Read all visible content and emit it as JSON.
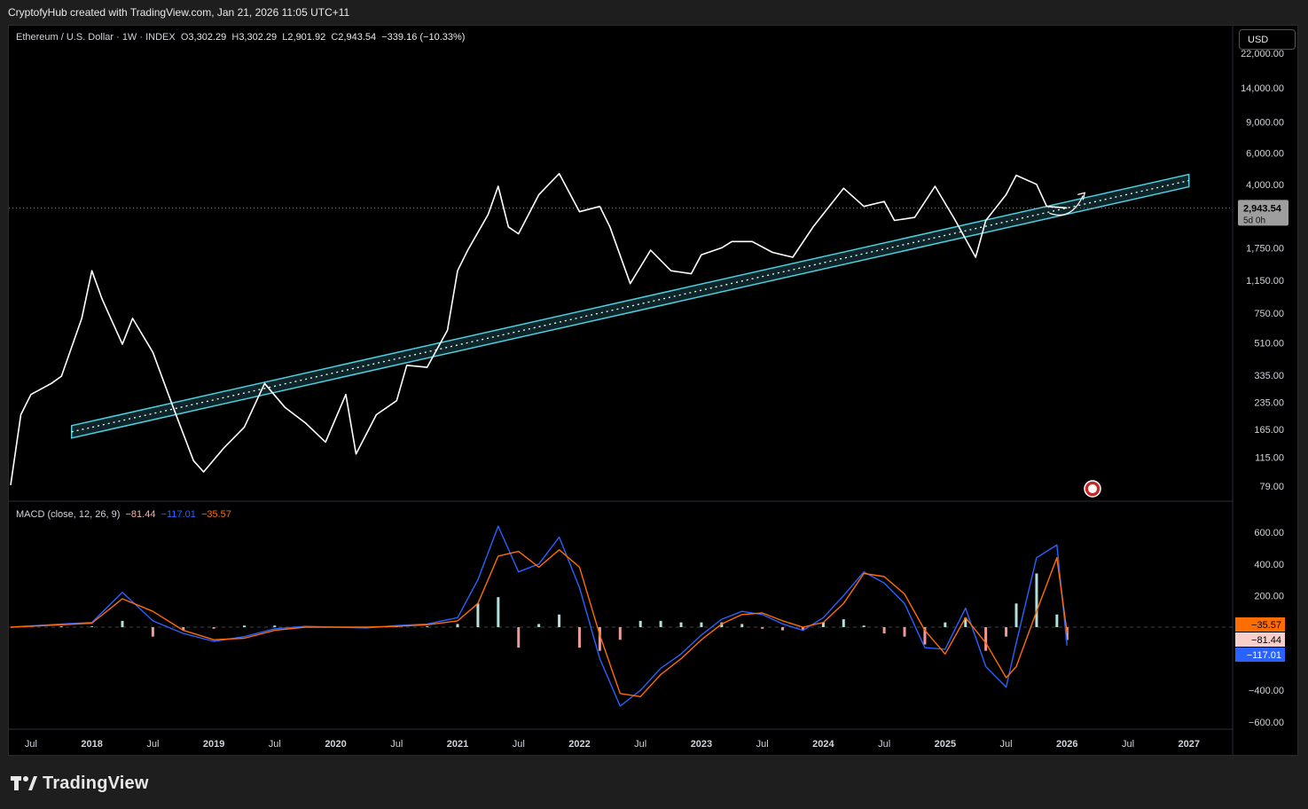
{
  "header": {
    "text": "CryptofyHub created with TradingView.com, Jan 21, 2026 11:05 UTC+11"
  },
  "footer": {
    "brand": "TradingView"
  },
  "currency_button": "USD",
  "legend": {
    "symbol": "Ethereum / U.S. Dollar · 1W · INDEX",
    "o_label": "O",
    "o_value": "3,302.29",
    "h_label": "H",
    "h_value": "3,302.29",
    "l_label": "L",
    "l_value": "2,901.92",
    "c_label": "C",
    "c_value": "2,943.54",
    "change": "−339.16 (−10.33%)"
  },
  "macd_legend": {
    "name": "MACD (close, 12, 26, 9)",
    "hist": "−81.44",
    "macd": "−117.01",
    "signal": "−35.57"
  },
  "colors": {
    "background": "#000000",
    "candle_up": "#ffffff",
    "candle_down": "#ffffff",
    "channel": "#4dd0e1",
    "macd_line": "#2962ff",
    "signal_line": "#ff6d00",
    "hist_pos": "#b2dfdb",
    "hist_neg": "#ef9a9a"
  },
  "chart_data": [
    {
      "type": "line",
      "title": "Ethereum / U.S. Dollar · 1W · INDEX",
      "scale": "log",
      "price_axis_ticks": [
        "22,000.00",
        "14,000.00",
        "9,000.00",
        "6,000.00",
        "4,000.00",
        "2,943.54",
        "1,750.00",
        "1,150.00",
        "750.00",
        "510.00",
        "335.00",
        "235.00",
        "165.00",
        "115.00",
        "79.00"
      ],
      "time_axis_ticks": [
        "Jul",
        "2018",
        "Jul",
        "2019",
        "Jul",
        "2020",
        "Jul",
        "2021",
        "Jul",
        "2022",
        "Jul",
        "2023",
        "Jul",
        "2024",
        "Jul",
        "2025",
        "Jul",
        "2026",
        "Jul",
        "2027"
      ],
      "last_price_label": "2,943.54",
      "countdown_label": "5d 0h",
      "ylim": [
        79,
        22000
      ],
      "x": [
        "2017-05",
        "2017-06",
        "2017-07",
        "2017-09",
        "2017-10",
        "2017-12",
        "2018-01",
        "2018-02",
        "2018-04",
        "2018-05",
        "2018-07",
        "2018-09",
        "2018-11",
        "2018-12",
        "2019-02",
        "2019-04",
        "2019-06",
        "2019-08",
        "2019-10",
        "2019-12",
        "2020-02",
        "2020-03",
        "2020-05",
        "2020-07",
        "2020-08",
        "2020-10",
        "2020-12",
        "2021-01",
        "2021-02",
        "2021-04",
        "2021-05",
        "2021-06",
        "2021-07",
        "2021-09",
        "2021-11",
        "2022-01",
        "2022-03",
        "2022-04",
        "2022-06",
        "2022-08",
        "2022-10",
        "2022-12",
        "2023-01",
        "2023-03",
        "2023-04",
        "2023-06",
        "2023-08",
        "2023-10",
        "2023-12",
        "2024-03",
        "2024-05",
        "2024-07",
        "2024-08",
        "2024-10",
        "2024-12",
        "2025-02",
        "2025-04",
        "2025-05",
        "2025-07",
        "2025-08",
        "2025-10",
        "2025-11",
        "2026-01"
      ],
      "values": [
        80,
        200,
        260,
        300,
        330,
        700,
        1300,
        900,
        500,
        700,
        450,
        220,
        110,
        95,
        130,
        170,
        300,
        220,
        180,
        140,
        260,
        120,
        200,
        240,
        380,
        370,
        600,
        1300,
        1700,
        2700,
        3900,
        2300,
        2100,
        3500,
        4600,
        2800,
        3000,
        2300,
        1100,
        1700,
        1300,
        1250,
        1600,
        1750,
        1900,
        1900,
        1650,
        1550,
        2300,
        3800,
        3000,
        3200,
        2500,
        2600,
        3900,
        2500,
        1550,
        2500,
        3500,
        4500,
        4000,
        3000,
        2943.54
      ],
      "channel": {
        "label": "",
        "start": [
          "2017-11",
          160
        ],
        "end": [
          "2027-01",
          4200
        ]
      }
    },
    {
      "type": "line",
      "title": "MACD (close, 12, 26, 9)",
      "ylim": [
        -600,
        600
      ],
      "axis_ticks": [
        "600.00",
        "400.00",
        "200.00",
        "−400.00",
        "−600.00"
      ],
      "value_labels": {
        "signal": "−35.57",
        "hist": "−81.44",
        "macd": "−117.01"
      },
      "x": [
        "2017-05",
        "2017-10",
        "2018-01",
        "2018-04",
        "2018-07",
        "2018-10",
        "2019-01",
        "2019-04",
        "2019-07",
        "2019-10",
        "2020-01",
        "2020-04",
        "2020-07",
        "2020-10",
        "2021-01",
        "2021-03",
        "2021-05",
        "2021-07",
        "2021-09",
        "2021-11",
        "2022-01",
        "2022-03",
        "2022-05",
        "2022-07",
        "2022-09",
        "2022-11",
        "2023-01",
        "2023-03",
        "2023-05",
        "2023-07",
        "2023-09",
        "2023-11",
        "2024-01",
        "2024-03",
        "2024-05",
        "2024-07",
        "2024-09",
        "2024-11",
        "2025-01",
        "2025-03",
        "2025-05",
        "2025-07",
        "2025-08",
        "2025-10",
        "2025-12",
        "2026-01"
      ],
      "series": [
        {
          "name": "MACD",
          "values": [
            0,
            20,
            30,
            220,
            40,
            -40,
            -90,
            -60,
            -10,
            5,
            0,
            -5,
            10,
            20,
            60,
            300,
            640,
            350,
            400,
            570,
            250,
            -200,
            -500,
            -400,
            -260,
            -170,
            -50,
            50,
            100,
            80,
            20,
            -20,
            60,
            200,
            350,
            280,
            150,
            -130,
            -140,
            120,
            -250,
            -380,
            -100,
            440,
            520,
            -117.01
          ]
        },
        {
          "name": "Signal",
          "values": [
            0,
            15,
            25,
            180,
            100,
            -20,
            -80,
            -70,
            -20,
            0,
            0,
            0,
            5,
            15,
            40,
            150,
            450,
            480,
            380,
            490,
            380,
            -50,
            -420,
            -440,
            -300,
            -200,
            -80,
            20,
            80,
            90,
            40,
            0,
            30,
            150,
            340,
            320,
            210,
            -20,
            -170,
            60,
            -100,
            -320,
            -250,
            100,
            440,
            -35.57
          ]
        },
        {
          "name": "Histogram",
          "values": [
            0,
            5,
            5,
            40,
            -60,
            -20,
            -10,
            10,
            10,
            5,
            0,
            -5,
            5,
            5,
            20,
            150,
            190,
            -130,
            20,
            80,
            -130,
            -150,
            -80,
            40,
            40,
            30,
            30,
            30,
            20,
            -10,
            -20,
            -20,
            30,
            50,
            10,
            -40,
            -60,
            -110,
            30,
            60,
            -150,
            -60,
            150,
            340,
            80,
            -81.44
          ]
        }
      ]
    }
  ]
}
